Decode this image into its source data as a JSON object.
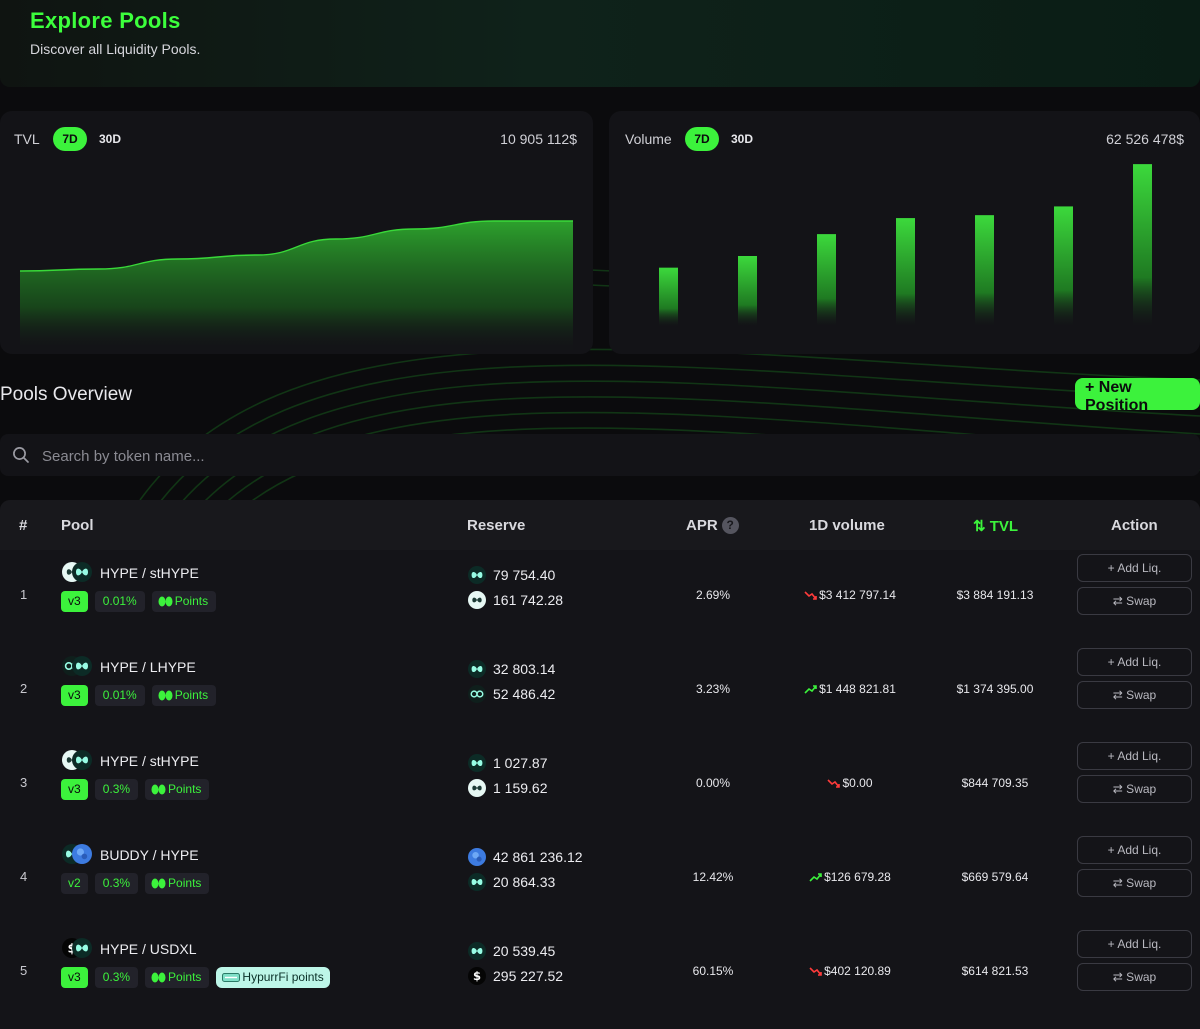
{
  "header": {
    "title": "Explore Pools",
    "subtitle": "Discover all Liquidity Pools."
  },
  "colors": {
    "accent": "#3cf23c",
    "down": "#ff3b3b",
    "up": "#3cf23c",
    "background": "#0b0b0d"
  },
  "tvl_card": {
    "label": "TVL",
    "ranges": [
      "7D",
      "30D"
    ],
    "selected": "7D",
    "total": "10 905 112$"
  },
  "volume_card": {
    "label": "Volume",
    "ranges": [
      "7D",
      "30D"
    ],
    "selected": "7D",
    "total": "62 526 478$"
  },
  "chart_data": [
    {
      "type": "area",
      "title": "",
      "x": [
        1,
        2,
        3,
        4,
        5,
        6,
        7,
        8
      ],
      "values": [
        100,
        101,
        106,
        108,
        116,
        121,
        125,
        125
      ],
      "xlabel": "",
      "ylabel": "",
      "grid": false
    },
    {
      "type": "bar",
      "title": "",
      "categories": [
        "1",
        "2",
        "3",
        "4",
        "5",
        "6",
        "7"
      ],
      "values": [
        4,
        4.8,
        6.3,
        7.4,
        7.6,
        8.2,
        11.1
      ],
      "xlabel": "",
      "ylabel": "",
      "grid": false
    }
  ],
  "overview": {
    "title": "Pools Overview",
    "new_position": "+ New Position"
  },
  "search": {
    "placeholder": "Search by token name...",
    "icon": "search-icon"
  },
  "table": {
    "columns": {
      "index": "#",
      "pool": "Pool",
      "reserve": "Reserve",
      "apr": "APR",
      "apr_help": "?",
      "volume": "1D volume",
      "tvl": "⇅ TVL",
      "action": "Action"
    },
    "add_label": "+ Add Liq.",
    "swap_label": "⇄ Swap",
    "rows": [
      {
        "index": "1",
        "pair": "HYPE / stHYPE",
        "version": "v3",
        "fee": "0.01%",
        "points": "Points",
        "promo": "",
        "reserve_a": "79 754.40",
        "reserve_b": "161 742.28",
        "apr": "2.69%",
        "volume": "$3 412 797.14",
        "trend": "down",
        "tvl": "$3 884 191.13",
        "icons": [
          "sthype-icon",
          "hype-icon"
        ],
        "reserve_icons": [
          "hype-icon",
          "sthype-icon"
        ]
      },
      {
        "index": "2",
        "pair": "HYPE / LHYPE",
        "version": "v3",
        "fee": "0.01%",
        "points": "Points",
        "promo": "",
        "reserve_a": "32 803.14",
        "reserve_b": "52 486.42",
        "apr": "3.23%",
        "volume": "$1 448 821.81",
        "trend": "up",
        "tvl": "$1 374 395.00",
        "icons": [
          "lhype-icon",
          "hype-icon"
        ],
        "reserve_icons": [
          "hype-icon",
          "lhype-icon"
        ]
      },
      {
        "index": "3",
        "pair": "HYPE / stHYPE",
        "version": "v3",
        "fee": "0.3%",
        "points": "Points",
        "promo": "",
        "reserve_a": "1 027.87",
        "reserve_b": "1 159.62",
        "apr": "0.00%",
        "volume": "$0.00",
        "trend": "down",
        "tvl": "$844 709.35",
        "icons": [
          "sthype-icon",
          "hype-icon"
        ],
        "reserve_icons": [
          "hype-icon",
          "sthype-icon"
        ]
      },
      {
        "index": "4",
        "pair": "BUDDY / HYPE",
        "version": "v2",
        "fee": "0.3%",
        "points": "Points",
        "promo": "",
        "reserve_a": "42 861 236.12",
        "reserve_b": "20 864.33",
        "apr": "12.42%",
        "volume": "$126 679.28",
        "trend": "up",
        "tvl": "$669 579.64",
        "icons": [
          "hype-icon",
          "buddy-icon"
        ],
        "reserve_icons": [
          "buddy-icon",
          "hype-icon"
        ]
      },
      {
        "index": "5",
        "pair": "HYPE / USDXL",
        "version": "v3",
        "fee": "0.3%",
        "points": "Points",
        "promo": "HypurrFi points",
        "reserve_a": "20 539.45",
        "reserve_b": "295 227.52",
        "apr": "60.15%",
        "volume": "$402 120.89",
        "trend": "down",
        "tvl": "$614 821.53",
        "icons": [
          "usdxl-icon",
          "hype-icon"
        ],
        "reserve_icons": [
          "hype-icon",
          "usdxl-icon"
        ]
      }
    ]
  }
}
